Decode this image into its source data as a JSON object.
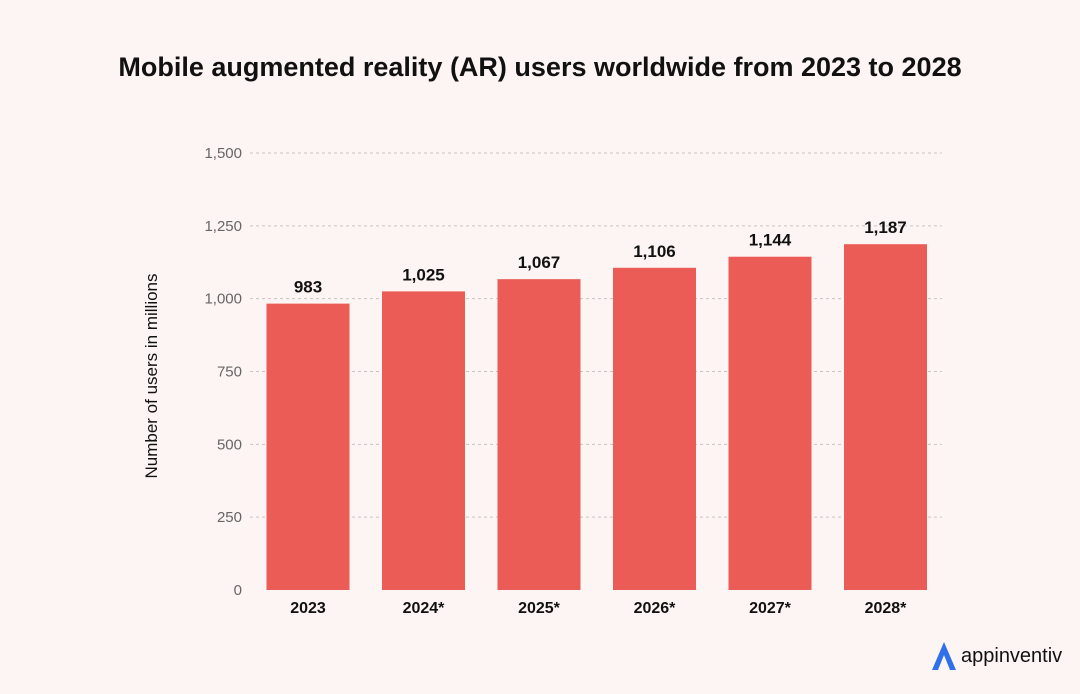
{
  "brand": {
    "name": "appinventiv",
    "accent": "#2f6fe8"
  },
  "chart_data": {
    "type": "bar",
    "title": "Mobile augmented reality (AR) users worldwide from 2023 to 2028",
    "ylabel": "Number of users in millions",
    "xlabel": "",
    "categories": [
      "2023",
      "2024*",
      "2025*",
      "2026*",
      "2027*",
      "2028*"
    ],
    "values": [
      983,
      1025,
      1067,
      1106,
      1144,
      1187
    ],
    "data_labels": [
      "983",
      "1,025",
      "1,067",
      "1,106",
      "1,144",
      "1,187"
    ],
    "y_ticks": [
      0,
      250,
      500,
      750,
      1000,
      1250,
      1500
    ],
    "y_tick_labels": [
      "0",
      "250",
      "500",
      "750",
      "1,000",
      "1,250",
      "1,500"
    ],
    "ylim": [
      0,
      1500
    ],
    "grid": true,
    "bar_color": "#eb5c57"
  }
}
